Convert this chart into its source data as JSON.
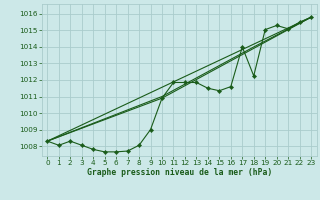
{
  "title": "Graphe pression niveau de la mer (hPa)",
  "background_color": "#cce8e8",
  "grid_color": "#aacccc",
  "line_color": "#1a5c1a",
  "text_color": "#1a5c1a",
  "xlim": [
    -0.5,
    23.5
  ],
  "ylim": [
    1007.4,
    1016.6
  ],
  "yticks": [
    1008,
    1009,
    1010,
    1011,
    1012,
    1013,
    1014,
    1015,
    1016
  ],
  "xticks": [
    0,
    1,
    2,
    3,
    4,
    5,
    6,
    7,
    8,
    9,
    10,
    11,
    12,
    13,
    14,
    15,
    16,
    17,
    18,
    19,
    20,
    21,
    22,
    23
  ],
  "main_x": [
    0,
    1,
    2,
    3,
    4,
    5,
    6,
    7,
    8,
    9,
    10,
    11,
    12,
    13,
    14,
    15,
    16,
    17,
    18,
    19,
    20,
    21,
    22,
    23
  ],
  "main_y": [
    1008.3,
    1008.05,
    1008.3,
    1008.05,
    1007.8,
    1007.65,
    1007.65,
    1007.7,
    1008.05,
    1009.0,
    1010.9,
    1011.85,
    1011.85,
    1011.85,
    1011.5,
    1011.35,
    1011.6,
    1014.0,
    1012.25,
    1015.05,
    1015.3,
    1015.1,
    1015.5,
    1015.8
  ],
  "trend_lines": [
    {
      "x": [
        0,
        23
      ],
      "y": [
        1008.3,
        1015.8
      ]
    },
    {
      "x": [
        0,
        10,
        23
      ],
      "y": [
        1008.3,
        1010.9,
        1015.8
      ]
    },
    {
      "x": [
        0,
        10,
        18,
        23
      ],
      "y": [
        1008.3,
        1011.0,
        1014.0,
        1015.8
      ]
    }
  ]
}
